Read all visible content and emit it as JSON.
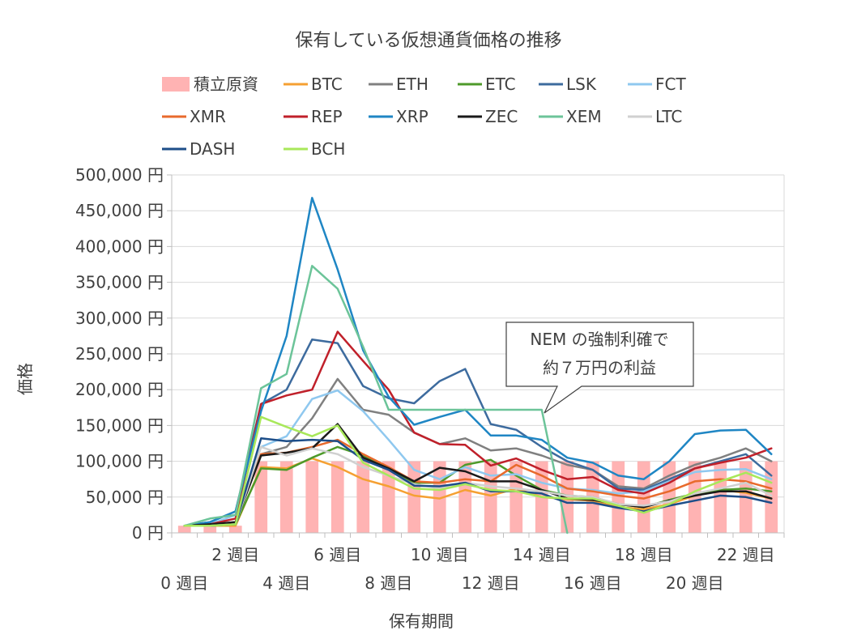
{
  "chart_data": {
    "type": "line",
    "title": "保有している仮想通貨価格の推移",
    "xlabel": "保有期間",
    "ylabel": "価格",
    "ylim": [
      0,
      500000
    ],
    "yticks": [
      "0 円",
      "50,000 円",
      "100,000 円",
      "150,000 円",
      "200,000 円",
      "250,000 円",
      "300,000 円",
      "350,000 円",
      "400,000 円",
      "450,000 円",
      "500,000 円"
    ],
    "x_tick_labels": [
      "0 週目",
      "2 週目",
      "4 週目",
      "6 週目",
      "8 週目",
      "10 週目",
      "12 週目",
      "14 週目",
      "16 週目",
      "18 週目",
      "20 週目",
      "22 週目"
    ],
    "grid": true,
    "legend_position": "top",
    "annotation": {
      "line1": "NEM の強制利確で",
      "line2": "約７万円の利益"
    },
    "bar_series": {
      "name": "積立原資",
      "color": "#ffb3b3",
      "values": [
        10000,
        10000,
        10000,
        100000,
        100000,
        100000,
        100000,
        100000,
        100000,
        100000,
        100000,
        100000,
        100000,
        100000,
        100000,
        100000,
        100000,
        100000,
        100000,
        100000,
        100000,
        100000,
        100000,
        100000
      ]
    },
    "series": [
      {
        "name": "BTC",
        "color": "#f5a032",
        "values": [
          10000,
          10000,
          10000,
          92000,
          90000,
          104000,
          92000,
          75000,
          65000,
          52000,
          48000,
          60000,
          52000,
          62000,
          50000,
          47000,
          45000,
          36000,
          33000,
          40000,
          52000,
          60000,
          56000,
          48000
        ]
      },
      {
        "name": "ETH",
        "color": "#808080",
        "values": [
          10000,
          12000,
          15000,
          110000,
          120000,
          160000,
          215000,
          172000,
          165000,
          140000,
          124000,
          132000,
          115000,
          118000,
          108000,
          95000,
          88000,
          65000,
          62000,
          80000,
          95000,
          105000,
          118000,
          100000
        ]
      },
      {
        "name": "ETC",
        "color": "#4e9a2a",
        "values": [
          10000,
          10000,
          12000,
          90000,
          88000,
          105000,
          120000,
          108000,
          90000,
          70000,
          70000,
          95000,
          102000,
          80000,
          60000,
          52000,
          50000,
          40000,
          36000,
          46000,
          55000,
          60000,
          62000,
          58000
        ]
      },
      {
        "name": "LSK",
        "color": "#3d6b9e",
        "values": [
          10000,
          15000,
          30000,
          180000,
          200000,
          270000,
          265000,
          205000,
          188000,
          181000,
          212000,
          229000,
          152000,
          144000,
          120000,
          100000,
          88000,
          62000,
          60000,
          75000,
          90000,
          100000,
          110000,
          80000
        ]
      },
      {
        "name": "FCT",
        "color": "#8fc8ef",
        "values": [
          10000,
          12000,
          25000,
          120000,
          135000,
          187000,
          199000,
          170000,
          130000,
          88000,
          75000,
          92000,
          80000,
          82000,
          70000,
          62000,
          60000,
          55000,
          58000,
          72000,
          85000,
          88000,
          89000,
          75000
        ]
      },
      {
        "name": "XMR",
        "color": "#e86a2c",
        "values": [
          10000,
          10000,
          15000,
          110000,
          112000,
          120000,
          130000,
          110000,
          92000,
          72000,
          70000,
          75000,
          72000,
          95000,
          80000,
          62000,
          58000,
          52000,
          48000,
          58000,
          72000,
          75000,
          72000,
          62000
        ]
      },
      {
        "name": "REP",
        "color": "#c0202a",
        "values": [
          10000,
          12000,
          20000,
          180000,
          192000,
          200000,
          281000,
          240000,
          200000,
          140000,
          124000,
          123000,
          94000,
          104000,
          88000,
          75000,
          78000,
          60000,
          55000,
          70000,
          90000,
          98000,
          105000,
          118000
        ]
      },
      {
        "name": "XRP",
        "color": "#1f86c4",
        "values": [
          10000,
          15000,
          30000,
          170000,
          275000,
          468000,
          368000,
          255000,
          190000,
          151000,
          162000,
          172000,
          136000,
          136000,
          130000,
          105000,
          98000,
          80000,
          75000,
          100000,
          138000,
          143000,
          144000,
          110000
        ]
      },
      {
        "name": "ZEC",
        "color": "#1a1a1a",
        "values": [
          10000,
          12000,
          15000,
          108000,
          112000,
          118000,
          152000,
          105000,
          90000,
          72000,
          91000,
          86000,
          72000,
          72000,
          60000,
          48000,
          46000,
          40000,
          36000,
          45000,
          52000,
          58000,
          58000,
          48000
        ]
      },
      {
        "name": "XEM",
        "color": "#6cc499",
        "values": [
          10000,
          20000,
          25000,
          202000,
          222000,
          373000,
          341000,
          260000,
          172000,
          172000,
          172000,
          172000,
          172000,
          172000,
          172000,
          0
        ]
      },
      {
        "name": "LTC",
        "color": "#d0d0d0",
        "values": [
          10000,
          10000,
          12000,
          120000,
          108000,
          118000,
          110000,
          92000,
          80000,
          68000,
          62000,
          70000,
          65000,
          62000,
          58000,
          52000,
          50000,
          40000,
          38000,
          44000,
          55000,
          62000,
          70000,
          52000
        ]
      },
      {
        "name": "DASH",
        "color": "#1d4e89",
        "values": [
          10000,
          10000,
          12000,
          132000,
          128000,
          130000,
          128000,
          102000,
          88000,
          66000,
          65000,
          70000,
          58000,
          58000,
          55000,
          42000,
          42000,
          35000,
          30000,
          38000,
          45000,
          52000,
          50000,
          42000
        ]
      },
      {
        "name": "BCH",
        "color": "#a8e85a",
        "values": [
          10000,
          10000,
          12000,
          162000,
          148000,
          135000,
          150000,
          98000,
          80000,
          62000,
          60000,
          68000,
          60000,
          58000,
          50000,
          48000,
          48000,
          38000,
          28000,
          40000,
          58000,
          72000,
          84000,
          70000
        ]
      }
    ]
  }
}
